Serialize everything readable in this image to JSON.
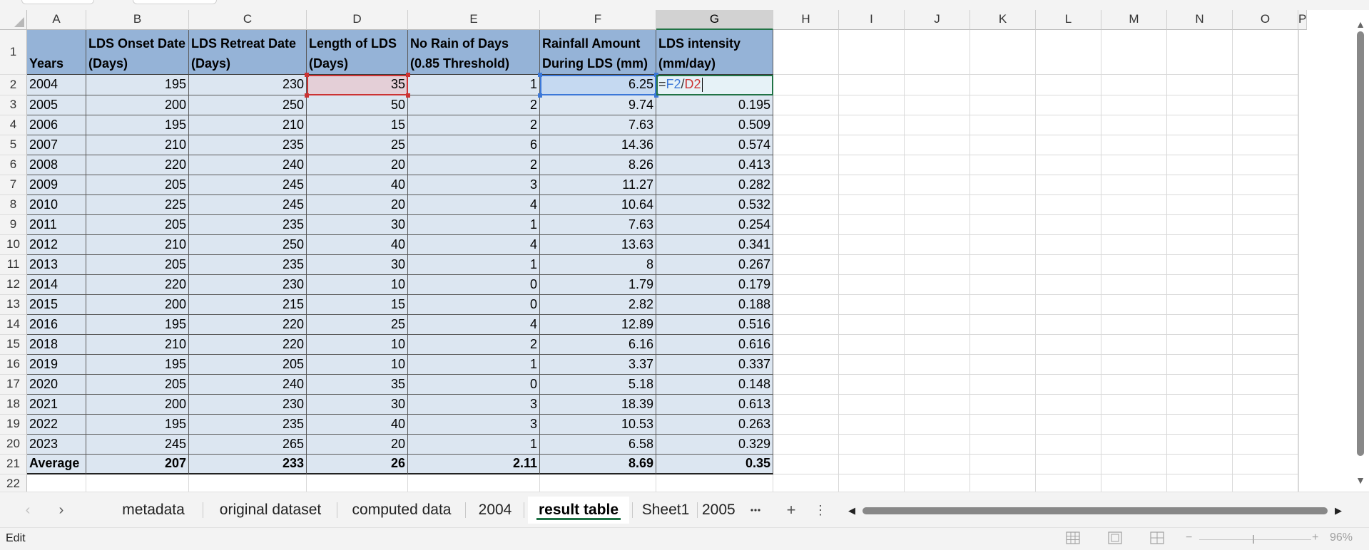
{
  "window": {
    "mode_label": "Edit",
    "zoom_label": "96%",
    "accent": "#217346"
  },
  "columns": [
    "A",
    "B",
    "C",
    "D",
    "E",
    "F",
    "G",
    "H",
    "I",
    "J",
    "K",
    "L",
    "M",
    "N",
    "O",
    "P"
  ],
  "rows": [
    "1",
    "2",
    "3",
    "4",
    "5",
    "6",
    "7",
    "8",
    "9",
    "10",
    "11",
    "12",
    "13",
    "14",
    "15",
    "16",
    "17",
    "18",
    "19",
    "20",
    "21",
    "22"
  ],
  "table": {
    "header": [
      [
        "",
        "Years"
      ],
      [
        "LDS Onset Date",
        "(Days)"
      ],
      [
        "LDS Retreat Date",
        "(Days)"
      ],
      [
        "Length of LDS",
        "(Days)"
      ],
      [
        "No Rain of Days",
        "(0.85 Threshold)"
      ],
      [
        "Rainfall Amount",
        "During LDS (mm)"
      ],
      [
        "LDS intensity",
        "(mm/day)"
      ]
    ],
    "rows": [
      [
        "2004",
        "195",
        "230",
        "35",
        "1",
        "6.25",
        ""
      ],
      [
        "2005",
        "200",
        "250",
        "50",
        "2",
        "9.74",
        "0.195"
      ],
      [
        "2006",
        "195",
        "210",
        "15",
        "2",
        "7.63",
        "0.509"
      ],
      [
        "2007",
        "210",
        "235",
        "25",
        "6",
        "14.36",
        "0.574"
      ],
      [
        "2008",
        "220",
        "240",
        "20",
        "2",
        "8.26",
        "0.413"
      ],
      [
        "2009",
        "205",
        "245",
        "40",
        "3",
        "11.27",
        "0.282"
      ],
      [
        "2010",
        "225",
        "245",
        "20",
        "4",
        "10.64",
        "0.532"
      ],
      [
        "2011",
        "205",
        "235",
        "30",
        "1",
        "7.63",
        "0.254"
      ],
      [
        "2012",
        "210",
        "250",
        "40",
        "4",
        "13.63",
        "0.341"
      ],
      [
        "2013",
        "205",
        "235",
        "30",
        "1",
        "8",
        "0.267"
      ],
      [
        "2014",
        "220",
        "230",
        "10",
        "0",
        "1.79",
        "0.179"
      ],
      [
        "2015",
        "200",
        "215",
        "15",
        "0",
        "2.82",
        "0.188"
      ],
      [
        "2016",
        "195",
        "220",
        "25",
        "4",
        "12.89",
        "0.516"
      ],
      [
        "2018",
        "210",
        "220",
        "10",
        "2",
        "6.16",
        "0.616"
      ],
      [
        "2019",
        "195",
        "205",
        "10",
        "1",
        "3.37",
        "0.337"
      ],
      [
        "2020",
        "205",
        "240",
        "35",
        "0",
        "5.18",
        "0.148"
      ],
      [
        "2021",
        "200",
        "230",
        "30",
        "3",
        "18.39",
        "0.613"
      ],
      [
        "2022",
        "195",
        "235",
        "40",
        "3",
        "10.53",
        "0.263"
      ],
      [
        "2023",
        "245",
        "265",
        "20",
        "1",
        "6.58",
        "0.329"
      ]
    ],
    "average": [
      "Average",
      "207",
      "233",
      "26",
      "2.11",
      "8.69",
      "0.35"
    ]
  },
  "edit": {
    "eq": "=",
    "ref1": "F2",
    "op": "/",
    "ref2": "D2",
    "ref1_color": "#3c78d8",
    "ref2_color": "#cc3333"
  },
  "sheets": [
    "metadata",
    "original dataset",
    "computed data",
    "2004",
    "result table",
    "Sheet1",
    "2005"
  ],
  "active_sheet": "result table"
}
